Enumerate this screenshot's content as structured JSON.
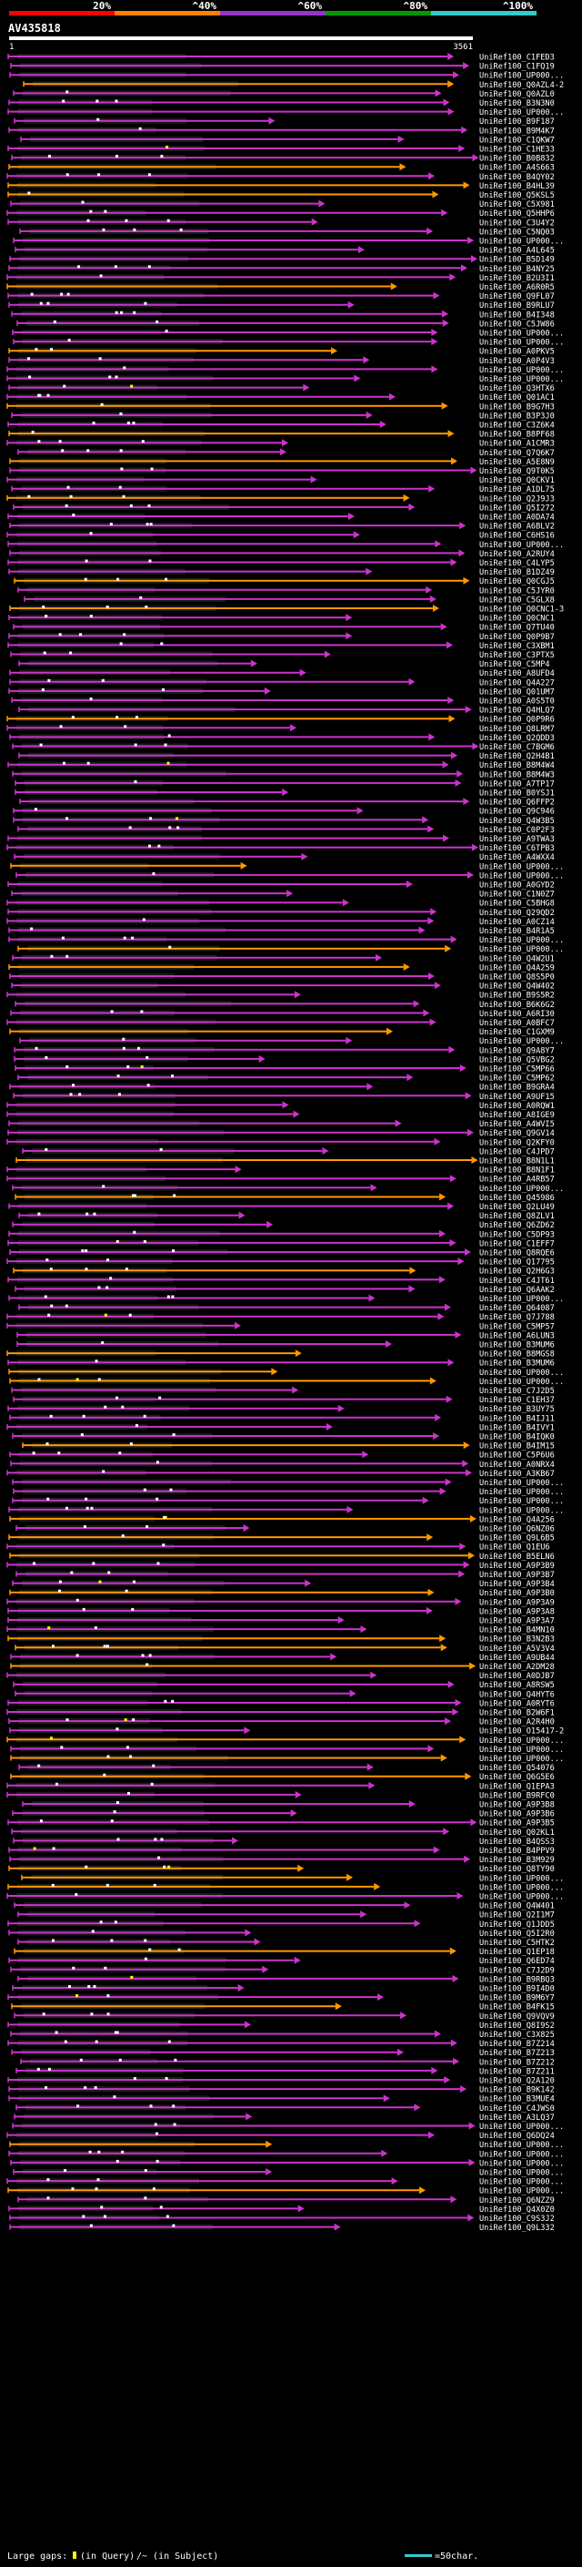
{
  "chart_data": {
    "type": "alignment-overview",
    "query_id": "AV435818",
    "query_start": 1,
    "query_end": 3561,
    "identity_scale": {
      "ticks": [
        "20%",
        "^40%",
        "^60%",
        "^80%",
        "^100%"
      ],
      "colors": [
        "#ff0000",
        "#ff7f00",
        "#9933cc",
        "#009900",
        "#33cccc"
      ]
    },
    "footer": {
      "large_gaps_label": "Large gaps:",
      "in_query_label": "(in Query)",
      "in_subject_label": "/~ (in Subject)",
      "scale_label": "=50char."
    },
    "colors": {
      "magenta": "#cc33cc",
      "orange": "#ff9900",
      "dot": "#ffffff",
      "yellow": "#ffff00"
    },
    "hits": [
      "UniRef100_C1FED3",
      "UniRef100_C1FQ19",
      "UniRef100_UP000...",
      "UniRef100_Q0AZL4-2",
      "UniRef100_Q0AZL0",
      "UniRef100_B3N3N0",
      "UniRef100_UP000...",
      "UniRef100_B9F187",
      "UniRef100_B9M4K7",
      "UniRef100_C1QKW7",
      "UniRef100_C1HE33",
      "UniRef100_B0B832",
      "UniRef100_A4S663",
      "UniRef100_B4QY02",
      "UniRef100_B4HL39",
      "UniRef100_Q5KSL5",
      "UniRef100_C5X981",
      "UniRef100_Q5HHP6",
      "UniRef100_C3U4Y2",
      "UniRef100_C5NQ03",
      "UniRef100_UP000...",
      "UniRef100_A4L645",
      "UniRef100_B5D149",
      "UniRef100_B4NY25",
      "UniRef100_B2U3I1",
      "UniRef100_A6R0R5",
      "UniRef100_Q9FL07",
      "UniRef100_B9RLU7",
      "UniRef100_B4I348",
      "UniRef100_C5JW86",
      "UniRef100_UP000...",
      "UniRef100_UP000...",
      "UniRef100_A0PKV5",
      "UniRef100_A0P4V3",
      "UniRef100_UP000...",
      "UniRef100_UP000...",
      "UniRef100_Q3HTX6",
      "UniRef100_Q01AC1",
      "UniRef100_B9G7H3",
      "UniRef100_B3P3J0",
      "UniRef100_C3Z6K4",
      "UniRef100_B8PF68",
      "UniRef100_A1CMR3",
      "UniRef100_Q7Q6K7",
      "UniRef100_A5E8N9",
      "UniRef100_Q9T0K5",
      "UniRef100_Q0CKV1",
      "UniRef100_A1DL75",
      "UniRef100_Q2J9J3",
      "UniRef100_Q5I272",
      "UniRef100_A0DA74",
      "UniRef100_A6BLV2",
      "UniRef100_C6HS16",
      "UniRef100_UP000...",
      "UniRef100_A2RUY4",
      "UniRef100_C4LYP5",
      "UniRef100_B1DZ49",
      "UniRef100_Q0CGJ5",
      "UniRef100_C5JYR0",
      "UniRef100_C5GLX8",
      "UniRef100_Q0CNC1-3",
      "UniRef100_Q0CNC1",
      "UniRef100_Q7TU40",
      "UniRef100_Q0P9B7",
      "UniRef100_C3XBM1",
      "UniRef100_C3PTX5",
      "UniRef100_C5MP4",
      "UniRef100_A8UFD4",
      "UniRef100_Q4A227",
      "UniRef100_Q01UM7",
      "UniRef100_A0S5T0",
      "UniRef100_Q4HLQ7",
      "UniRef100_Q0P9R6",
      "UniRef100_Q8LRM7",
      "UniRef100_Q2QDD3",
      "UniRef100_C7BGM6",
      "UniRef100_Q2H4B1",
      "UniRef100_B8M4W4",
      "UniRef100_B8M4W3",
      "UniRef100_A7TP17",
      "UniRef100_B0YSJ1",
      "UniRef100_Q6FFP2",
      "UniRef100_Q9C946",
      "UniRef100_Q4W3B5",
      "UniRef100_C0P2F3",
      "UniRef100_A9TWA3",
      "UniRef100_C6TPB3",
      "UniRef100_A4WXX4",
      "UniRef100_UP000...",
      "UniRef100_UP000...",
      "UniRef100_A0GYD2",
      "UniRef100_C1N0Z7",
      "UniRef100_C5BHG8",
      "UniRef100_Q29QD2",
      "UniRef100_A0CZ14",
      "UniRef100_B4R1A5",
      "UniRef100_UP000...",
      "UniRef100_UP000...",
      "UniRef100_Q4W2U1",
      "UniRef100_Q4A259",
      "UniRef100_Q8S5P0",
      "UniRef100_Q4W402",
      "UniRef100_B9S5R2",
      "UniRef100_B6K6G2",
      "UniRef100_A6RI30",
      "UniRef100_A0BFC7",
      "UniRef100_C1GXM9",
      "UniRef100_UP000...",
      "UniRef100_Q9A8Y7",
      "UniRef100_Q5VBG2",
      "UniRef100_C5MP66",
      "UniRef100_C5MP62",
      "UniRef100_B9GRA4",
      "UniRef100_A9UF15",
      "UniRef100_A0RQW1",
      "UniRef100_A8IGE9",
      "UniRef100_A4WVI5",
      "UniRef100_Q9GV14",
      "UniRef100_Q2KFY0",
      "UniRef100_C4JPD7",
      "UniRef100_B8N1L1",
      "UniRef100_B8N1F1",
      "UniRef100_A4RB57",
      "UniRef100_UP000...",
      "UniRef100_Q45986",
      "UniRef100_Q2LU49",
      "UniRef100_Q8ZLV1",
      "UniRef100_Q6ZD62",
      "UniRef100_C5DP93",
      "UniRef100_C1EFF7",
      "UniRef100_Q8RQE6",
      "UniRef100_Q17795",
      "UniRef100_Q2H6G3",
      "UniRef100_C4JT61",
      "UniRef100_Q6AAK2",
      "UniRef100_UP000...",
      "UniRef100_Q64087",
      "UniRef100_Q7J788",
      "UniRef100_C5MP57",
      "UniRef100_A6LUN3",
      "UniRef100_B3MUM6",
      "UniRef100_B8MGS8",
      "UniRef100_B3MUM6",
      "UniRef100_UP000...",
      "UniRef100_UP000...",
      "UniRef100_C7J2D5",
      "UniRef100_C1EH37",
      "UniRef100_B3UY75",
      "UniRef100_B4IJ11",
      "UniRef100_B4IVY1",
      "UniRef100_B4IQK0",
      "UniRef100_B4IM15",
      "UniRef100_C5P6U6",
      "UniRef100_A0NRX4",
      "UniRef100_A3KB67",
      "UniRef100_UP000...",
      "UniRef100_UP000...",
      "UniRef100_UP000...",
      "UniRef100_UP000...",
      "UniRef100_Q4A256",
      "UniRef100_Q6NZ06",
      "UniRef100_Q9L6B5",
      "UniRef100_Q1EU6",
      "UniRef100_B5ELN6",
      "UniRef100_A9P3B9",
      "UniRef100_A9P3B7",
      "UniRef100_A9P3B4",
      "UniRef100_A9P3B0",
      "UniRef100_A9P3A9",
      "UniRef100_A9P3A8",
      "UniRef100_A9P3A7",
      "UniRef100_B4MN10",
      "UniRef100_B3N2B3",
      "UniRef100_A5V3V4",
      "UniRef100_A9UB44",
      "UniRef100_A2DM28",
      "UniRef100_A0DJB7",
      "UniRef100_A8RSW5",
      "UniRef100_Q4HYT6",
      "UniRef100_A0RYT6",
      "UniRef100_B2W6F1",
      "UniRef100_A2R4H0",
      "UniRef100_O15417-2",
      "UniRef100_UP000...",
      "UniRef100_UP000...",
      "UniRef100_UP000...",
      "UniRef100_Q54076",
      "UniRef100_Q6G5E6",
      "UniRef100_Q1EPA3",
      "UniRef100_B9RFC0",
      "UniRef100_A9P3B8",
      "UniRef100_A9P3B6",
      "UniRef100_A9P3B5",
      "UniRef100_Q02KL1",
      "UniRef100_B4QSS3",
      "UniRef100_B4PPV9",
      "UniRef100_B3M929",
      "UniRef100_Q8TY90",
      "UniRef100_UP000...",
      "UniRef100_UP000...",
      "UniRef100_UP000...",
      "UniRef100_Q4W401",
      "UniRef100_Q2I1M7",
      "UniRef100_Q1JDD5",
      "UniRef100_Q5I2R0",
      "UniRef100_C5HTK2",
      "UniRef100_Q1EP18",
      "UniRef100_Q6ED74",
      "UniRef100_C7J2D9",
      "UniRef100_B9RBQ3",
      "UniRef100_B9I4D0",
      "UniRef100_B9M6Y7",
      "UniRef100_B4FK15",
      "UniRef100_Q9VQV9",
      "UniRef100_Q8I9S2",
      "UniRef100_C3X825",
      "UniRef100_B7Z214",
      "UniRef100_B7Z213",
      "UniRef100_B7Z212",
      "UniRef100_B7Z211",
      "UniRef100_Q2A120",
      "UniRef100_B9K142",
      "UniRef100_B3MUE4",
      "UniRef100_C4JWS0",
      "UniRef100_A3LQ37",
      "UniRef100_UP000...",
      "UniRef100_Q6DQ24",
      "UniRef100_UP000...",
      "UniRef100_UP000...",
      "UniRef100_UP000...",
      "UniRef100_UP000...",
      "UniRef100_UP000...",
      "UniRef100_UP000...",
      "UniRef100_Q6NZZ9",
      "UniRef100_Q4X0Z0",
      "UniRef100_C9S3J2",
      "UniRef100_Q9L332"
    ]
  }
}
